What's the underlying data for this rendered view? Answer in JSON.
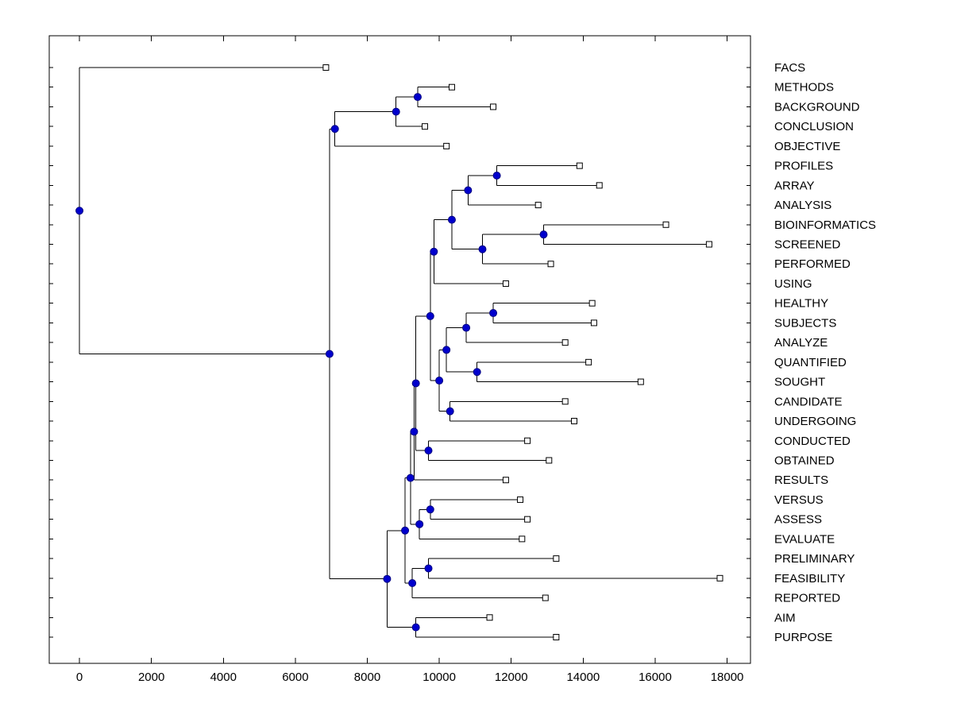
{
  "figure": {
    "background": "#ffffff"
  },
  "chart_data": {
    "type": "dendrogram",
    "title": "",
    "xlabel": "",
    "ylabel": "",
    "orientation": "horizontal",
    "labels_side": "right",
    "grid": false,
    "xlim": [
      -840,
      18650
    ],
    "x_ticks": [
      0,
      2000,
      4000,
      6000,
      8000,
      10000,
      12000,
      14000,
      16000,
      18000
    ],
    "style": {
      "line_color": "#000000",
      "node_marker_fill": "#0000CD",
      "node_marker_edge": "#000080",
      "leaf_marker_fill": "#ffffff",
      "leaf_marker_edge": "#000000",
      "axis_color": "#000000",
      "label_color": "#000000"
    },
    "leaves": [
      {
        "label": "FACS",
        "x": 6850
      },
      {
        "label": "METHODS",
        "x": 10350
      },
      {
        "label": "BACKGROUND",
        "x": 11500
      },
      {
        "label": "CONCLUSION",
        "x": 9600
      },
      {
        "label": "OBJECTIVE",
        "x": 10200
      },
      {
        "label": "PROFILES",
        "x": 13900
      },
      {
        "label": "ARRAY",
        "x": 14450
      },
      {
        "label": "ANALYSIS",
        "x": 12750
      },
      {
        "label": "BIOINFORMATICS",
        "x": 16300
      },
      {
        "label": "SCREENED",
        "x": 17500
      },
      {
        "label": "PERFORMED",
        "x": 13100
      },
      {
        "label": "USING",
        "x": 11850
      },
      {
        "label": "HEALTHY",
        "x": 14250
      },
      {
        "label": "SUBJECTS",
        "x": 14300
      },
      {
        "label": "ANALYZE",
        "x": 13500
      },
      {
        "label": "QUANTIFIED",
        "x": 14150
      },
      {
        "label": "SOUGHT",
        "x": 15600
      },
      {
        "label": "CANDIDATE",
        "x": 13500
      },
      {
        "label": "UNDERGOING",
        "x": 13750
      },
      {
        "label": "CONDUCTED",
        "x": 12450
      },
      {
        "label": "OBTAINED",
        "x": 13050
      },
      {
        "label": "RESULTS",
        "x": 11850
      },
      {
        "label": "VERSUS",
        "x": 12250
      },
      {
        "label": "ASSESS",
        "x": 12450
      },
      {
        "label": "EVALUATE",
        "x": 12300
      },
      {
        "label": "PRELIMINARY",
        "x": 13250
      },
      {
        "label": "FEASIBILITY",
        "x": 17800
      },
      {
        "label": "REPORTED",
        "x": 12950
      },
      {
        "label": "AIM",
        "x": 11400
      },
      {
        "label": "PURPOSE",
        "x": 13250
      }
    ],
    "nodes": [
      {
        "id": "n_mb",
        "x": 9400,
        "children": [
          "METHODS",
          "BACKGROUND"
        ]
      },
      {
        "id": "n_mbc",
        "x": 8800,
        "children": [
          "n_mb",
          "CONCLUSION"
        ]
      },
      {
        "id": "n_top",
        "x": 7100,
        "children": [
          "n_mbc",
          "OBJECTIVE"
        ]
      },
      {
        "id": "n_pa",
        "x": 11600,
        "children": [
          "PROFILES",
          "ARRAY"
        ]
      },
      {
        "id": "n_paa",
        "x": 10800,
        "children": [
          "n_pa",
          "ANALYSIS"
        ]
      },
      {
        "id": "n_bs",
        "x": 12900,
        "children": [
          "BIOINFORMATICS",
          "SCREENED"
        ]
      },
      {
        "id": "n_bsp",
        "x": 11200,
        "children": [
          "n_bs",
          "PERFORMED"
        ]
      },
      {
        "id": "n_u1",
        "x": 10350,
        "children": [
          "n_paa",
          "n_bsp"
        ]
      },
      {
        "id": "n_u2",
        "x": 9850,
        "children": [
          "n_u1",
          "USING"
        ]
      },
      {
        "id": "n_hs",
        "x": 11500,
        "children": [
          "HEALTHY",
          "SUBJECTS"
        ]
      },
      {
        "id": "n_hsa",
        "x": 10750,
        "children": [
          "n_hs",
          "ANALYZE"
        ]
      },
      {
        "id": "n_qs",
        "x": 11050,
        "children": [
          "QUANTIFIED",
          "SOUGHT"
        ]
      },
      {
        "id": "n_m1",
        "x": 10200,
        "children": [
          "n_hsa",
          "n_qs"
        ]
      },
      {
        "id": "n_cu",
        "x": 10300,
        "children": [
          "CANDIDATE",
          "UNDERGOING"
        ]
      },
      {
        "id": "n_m2",
        "x": 10000,
        "children": [
          "n_m1",
          "n_cu"
        ]
      },
      {
        "id": "n_y",
        "x": 9750,
        "children": [
          "n_u2",
          "n_m2"
        ]
      },
      {
        "id": "n_co",
        "x": 9700,
        "children": [
          "CONDUCTED",
          "OBTAINED"
        ]
      },
      {
        "id": "n_z",
        "x": 9350,
        "children": [
          "n_y",
          "n_co"
        ]
      },
      {
        "id": "n_r",
        "x": 9300,
        "children": [
          "n_z",
          "RESULTS"
        ]
      },
      {
        "id": "n_va",
        "x": 9750,
        "children": [
          "VERSUS",
          "ASSESS"
        ]
      },
      {
        "id": "n_vae",
        "x": 9450,
        "children": [
          "n_va",
          "EVALUATE"
        ]
      },
      {
        "id": "n_r2",
        "x": 9200,
        "children": [
          "n_r",
          "n_vae"
        ]
      },
      {
        "id": "n_pf",
        "x": 9700,
        "children": [
          "PRELIMINARY",
          "FEASIBILITY"
        ]
      },
      {
        "id": "n_pfr",
        "x": 9250,
        "children": [
          "n_pf",
          "REPORTED"
        ]
      },
      {
        "id": "R3",
        "x": 9050,
        "children": [
          "n_r2",
          "n_pfr"
        ]
      },
      {
        "id": "n_ap",
        "x": 9350,
        "children": [
          "AIM",
          "PURPOSE"
        ]
      },
      {
        "id": "R2",
        "x": 8550,
        "children": [
          "R3",
          "n_ap"
        ]
      },
      {
        "id": "R1",
        "x": 6950,
        "children": [
          "n_top",
          "R2"
        ]
      },
      {
        "id": "root",
        "x": 0,
        "children": [
          "FACS",
          "R1"
        ]
      }
    ]
  }
}
